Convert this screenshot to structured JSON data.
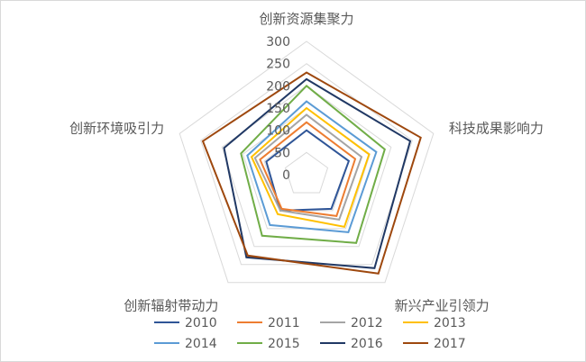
{
  "chart_data": {
    "type": "radar",
    "categories": [
      "创新资源集聚力",
      "科技成果影响力",
      "新兴产业引领力",
      "创新辐射带动力",
      "创新环境吸引力"
    ],
    "rlim": [
      0,
      300
    ],
    "ticks": [
      "0",
      "50",
      "100",
      "150",
      "200",
      "250",
      "300"
    ],
    "tick_values": [
      0,
      50,
      100,
      150,
      200,
      250,
      300
    ],
    "grid": true,
    "legend_position": "bottom",
    "series": [
      {
        "name": "2010",
        "color": "#2f5597",
        "values": [
          100,
          100,
          95,
          100,
          95
        ]
      },
      {
        "name": "2011",
        "color": "#ed7d31",
        "values": [
          118,
          115,
          115,
          95,
          110
        ]
      },
      {
        "name": "2012",
        "color": "#a5a5a5",
        "values": [
          135,
          130,
          125,
          100,
          122
        ]
      },
      {
        "name": "2013",
        "color": "#ffc000",
        "values": [
          150,
          148,
          145,
          110,
          130
        ]
      },
      {
        "name": "2014",
        "color": "#5b9bd5",
        "values": [
          165,
          165,
          160,
          140,
          140
        ]
      },
      {
        "name": "2015",
        "color": "#70ad47",
        "values": [
          200,
          185,
          190,
          170,
          155
        ]
      },
      {
        "name": "2016",
        "color": "#203864",
        "values": [
          215,
          245,
          260,
          230,
          195
        ]
      },
      {
        "name": "2017",
        "color": "#9e480e",
        "values": [
          230,
          270,
          275,
          225,
          245
        ]
      }
    ]
  }
}
